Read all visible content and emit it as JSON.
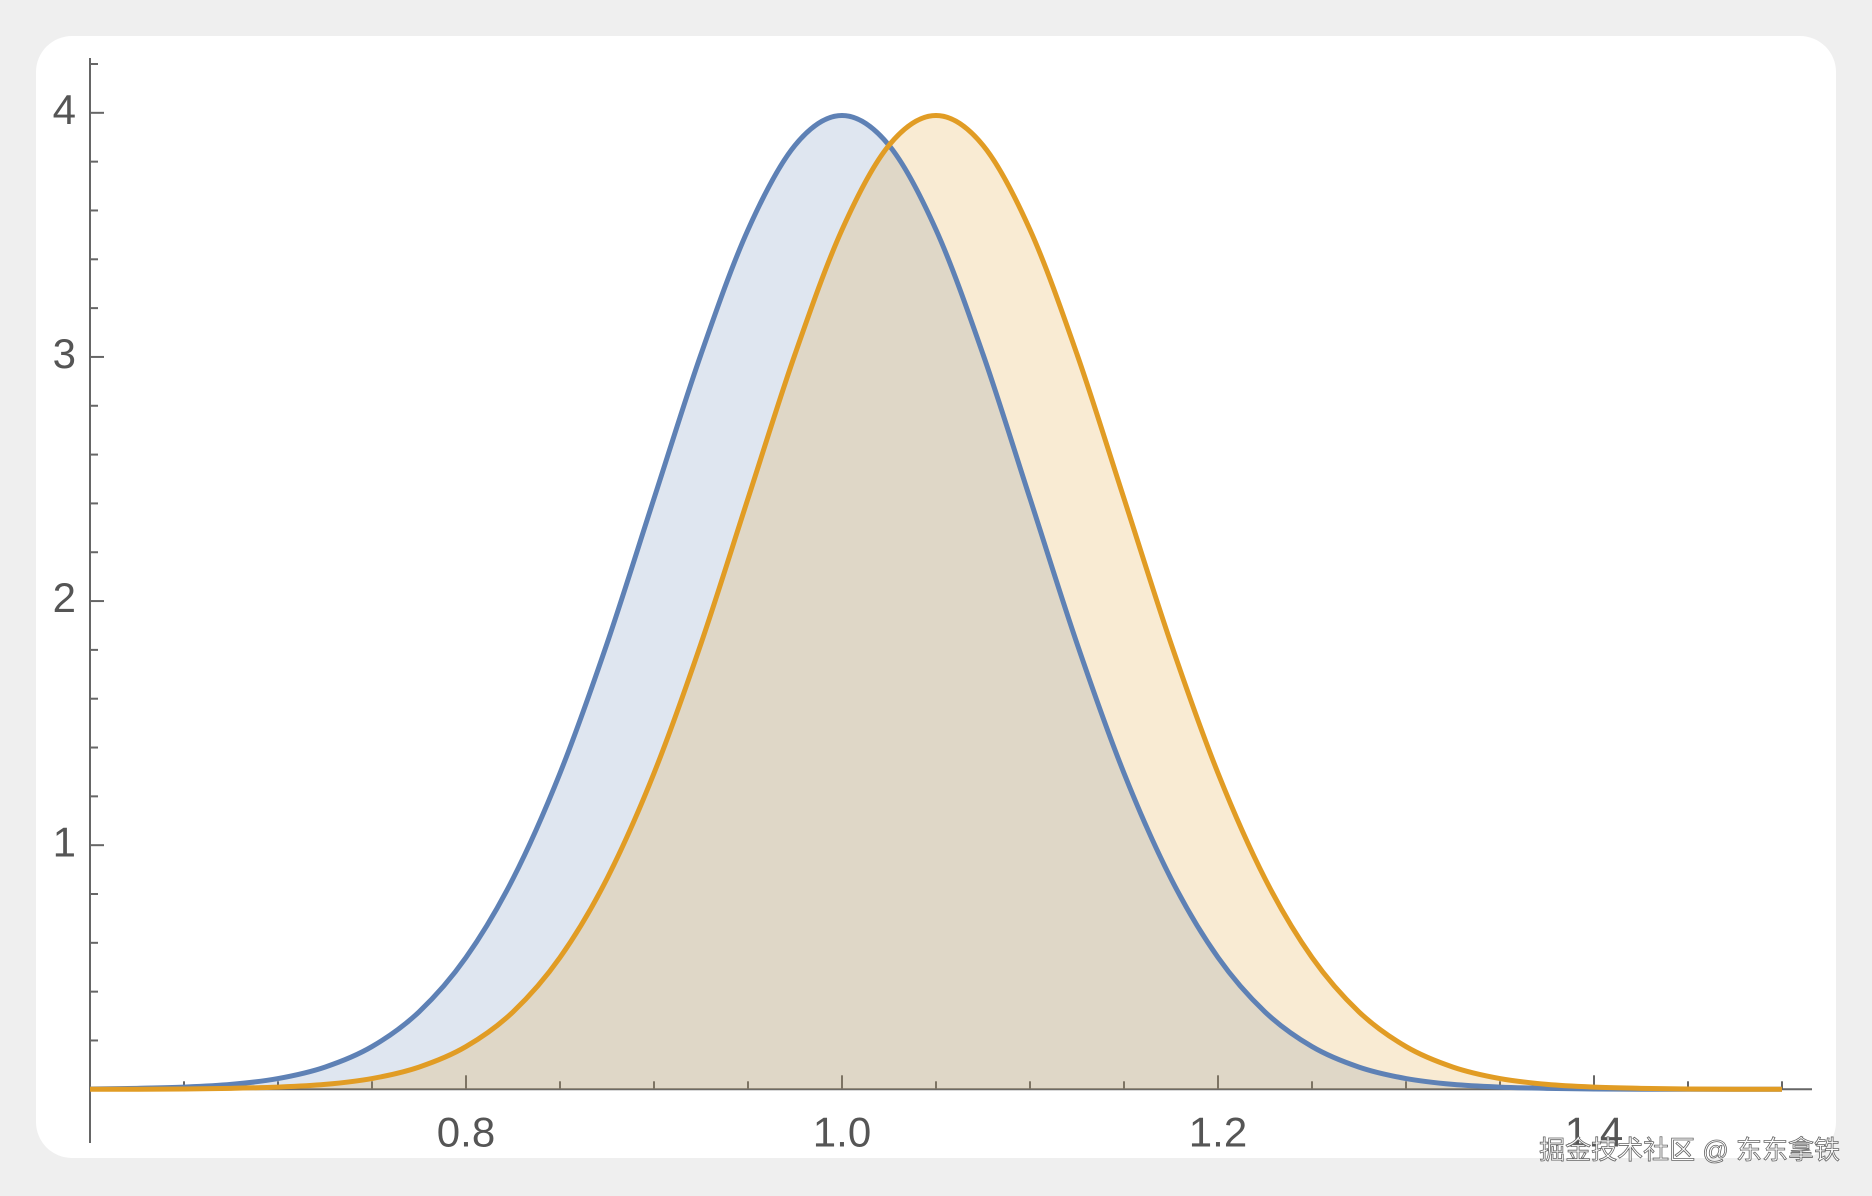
{
  "chart_data": {
    "type": "area",
    "x": [
      0.6,
      0.625,
      0.65,
      0.675,
      0.7,
      0.725,
      0.75,
      0.775,
      0.8,
      0.825,
      0.85,
      0.875,
      0.9,
      0.925,
      0.95,
      0.975,
      1.0,
      1.025,
      1.05,
      1.075,
      1.1,
      1.125,
      1.15,
      1.175,
      1.2,
      1.225,
      1.25,
      1.275,
      1.3,
      1.325,
      1.35,
      1.375,
      1.4,
      1.425,
      1.45,
      1.475,
      1.5
    ],
    "series": [
      {
        "color": "#5e81b5",
        "fill": "rgba(94,129,181,0.2)",
        "values": [
          0.001,
          0.004,
          0.009,
          0.02,
          0.044,
          0.091,
          0.175,
          0.317,
          0.54,
          0.863,
          1.295,
          1.826,
          2.42,
          3.011,
          3.521,
          3.867,
          3.989,
          3.867,
          3.521,
          3.011,
          2.42,
          1.826,
          1.295,
          0.863,
          0.54,
          0.317,
          0.175,
          0.091,
          0.044,
          0.02,
          0.009,
          0.004,
          0.001,
          0,
          0,
          0,
          0
        ]
      },
      {
        "color": "#e19c24",
        "fill": "rgba(225,156,36,0.2)",
        "values": [
          0,
          0,
          0.001,
          0.004,
          0.009,
          0.02,
          0.044,
          0.091,
          0.175,
          0.317,
          0.54,
          0.863,
          1.295,
          1.826,
          2.42,
          3.011,
          3.521,
          3.867,
          3.989,
          3.867,
          3.521,
          3.011,
          2.42,
          1.826,
          1.295,
          0.863,
          0.54,
          0.317,
          0.175,
          0.091,
          0.044,
          0.02,
          0.009,
          0.004,
          0.001,
          0,
          0
        ]
      }
    ],
    "xlim": [
      0.6,
      1.5
    ],
    "ylim": [
      -0.22,
      4.2
    ],
    "xticks": [
      {
        "value": 0.8,
        "label": "0.8"
      },
      {
        "value": 1.0,
        "label": "1.0"
      },
      {
        "value": 1.2,
        "label": "1.2"
      },
      {
        "value": 1.4,
        "label": "1.4"
      }
    ],
    "xminorticks": [
      0.65,
      0.7,
      0.75,
      0.85,
      0.9,
      0.95,
      1.05,
      1.1,
      1.15,
      1.25,
      1.3,
      1.35,
      1.45,
      1.5
    ],
    "yticks": [
      1,
      2,
      3,
      4
    ],
    "yminorticks": [
      0.2,
      0.4,
      0.6,
      0.8,
      1.2,
      1.4,
      1.6,
      1.8,
      2.2,
      2.4,
      2.6,
      2.8,
      3.2,
      3.4,
      3.6,
      3.8,
      4.2
    ],
    "watermark": "掘金技术社区 @ 东东拿铁"
  }
}
